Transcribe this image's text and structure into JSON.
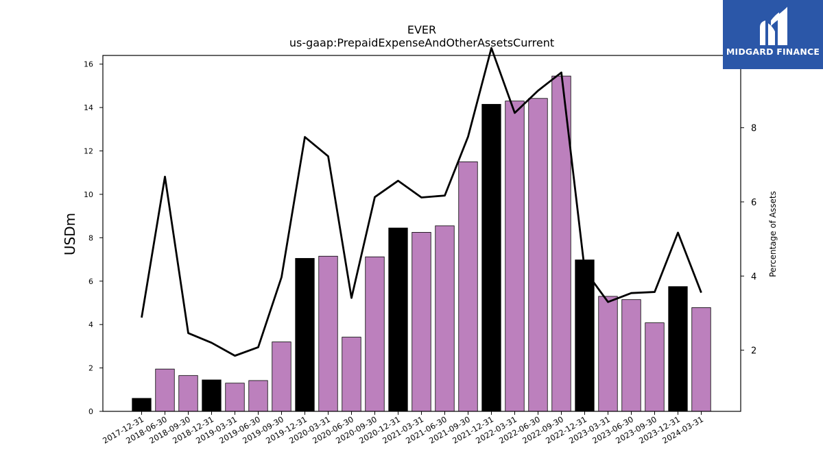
{
  "chart_data": {
    "type": "bar",
    "title": "EVER",
    "subtitle": "us-gaap:PrepaidExpenseAndOtherAssetsCurrent",
    "ylabel": "USDm",
    "y2label": "Percentage of Assets",
    "ylim": [
      0,
      16.4
    ],
    "y2lim": [
      0.35,
      9.95
    ],
    "yticks": [
      "0",
      "2",
      "4",
      "6",
      "8",
      "10",
      "12",
      "14",
      "16"
    ],
    "y2ticks": [
      "2",
      "4",
      "6",
      "8"
    ],
    "categories": [
      "2017-12-31",
      "2018-06-30",
      "2018-09-30",
      "2018-12-31",
      "2019-03-31",
      "2019-06-30",
      "2019-09-30",
      "2019-12-31",
      "2020-03-31",
      "2020-06-30",
      "2020-09-30",
      "2020-12-31",
      "2021-03-31",
      "2021-06-30",
      "2021-09-30",
      "2021-12-31",
      "2022-03-31",
      "2022-06-30",
      "2022-09-30",
      "2022-12-31",
      "2023-03-31",
      "2023-06-30",
      "2023-09-30",
      "2023-12-31",
      "2024-03-31"
    ],
    "series": [
      {
        "kind": "bar",
        "values": [
          0.6,
          1.95,
          1.65,
          1.45,
          1.3,
          1.42,
          3.2,
          7.05,
          7.15,
          3.42,
          7.12,
          8.45,
          8.25,
          8.55,
          11.5,
          14.15,
          14.3,
          14.42,
          15.45,
          6.98,
          5.3,
          5.15,
          4.08,
          5.75,
          4.78
        ],
        "annual": [
          true,
          false,
          false,
          true,
          false,
          false,
          false,
          true,
          false,
          false,
          false,
          true,
          false,
          false,
          false,
          true,
          false,
          false,
          false,
          true,
          false,
          false,
          false,
          true,
          false
        ]
      },
      {
        "kind": "line",
        "axis": "right",
        "values": [
          2.88,
          6.68,
          2.46,
          2.2,
          1.85,
          2.08,
          3.97,
          7.75,
          7.23,
          3.41,
          6.13,
          6.57,
          6.12,
          6.17,
          7.76,
          10.15,
          8.4,
          9.0,
          9.49,
          4.16,
          3.3,
          3.54,
          3.57,
          5.17,
          3.55
        ]
      }
    ],
    "colors": {
      "annual_bar": "#000000",
      "quarter_bar": "#bc80bd",
      "line": "#000000"
    },
    "grid": false,
    "legend": "none"
  },
  "logo": {
    "text": "MIDGARD FINANCE",
    "color": "#2b57a8"
  }
}
